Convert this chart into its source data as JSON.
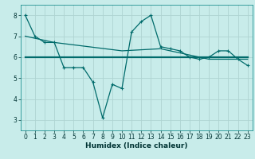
{
  "title": "",
  "xlabel": "Humidex (Indice chaleur)",
  "ylabel": "",
  "bg_color": "#c8ecea",
  "grid_color": "#aed4d2",
  "line_color": "#006b6b",
  "xlim": [
    -0.5,
    23.5
  ],
  "ylim": [
    2.5,
    8.5
  ],
  "xticks": [
    0,
    1,
    2,
    3,
    4,
    5,
    6,
    7,
    8,
    9,
    10,
    11,
    12,
    13,
    14,
    15,
    16,
    17,
    18,
    19,
    20,
    21,
    22,
    23
  ],
  "yticks": [
    3,
    4,
    5,
    6,
    7,
    8
  ],
  "line1_x": [
    0,
    1,
    2,
    3,
    4,
    5,
    6,
    7,
    8,
    9,
    10,
    11,
    12,
    13,
    14,
    15,
    16,
    17,
    18,
    19,
    20,
    21,
    22,
    23
  ],
  "line1_y": [
    8.0,
    7.0,
    6.7,
    6.7,
    5.5,
    5.5,
    5.5,
    4.8,
    3.1,
    4.7,
    4.5,
    7.2,
    7.7,
    8.0,
    6.5,
    6.4,
    6.3,
    6.0,
    5.9,
    6.0,
    6.3,
    6.3,
    5.9,
    5.6
  ],
  "line2_x": [
    0,
    23
  ],
  "line2_y": [
    6.0,
    6.0
  ],
  "line3_x": [
    0,
    3,
    10,
    14,
    19,
    23
  ],
  "line3_y": [
    7.0,
    6.7,
    6.3,
    6.4,
    5.9,
    5.9
  ],
  "tick_fontsize": 5.5,
  "xlabel_fontsize": 6.5
}
